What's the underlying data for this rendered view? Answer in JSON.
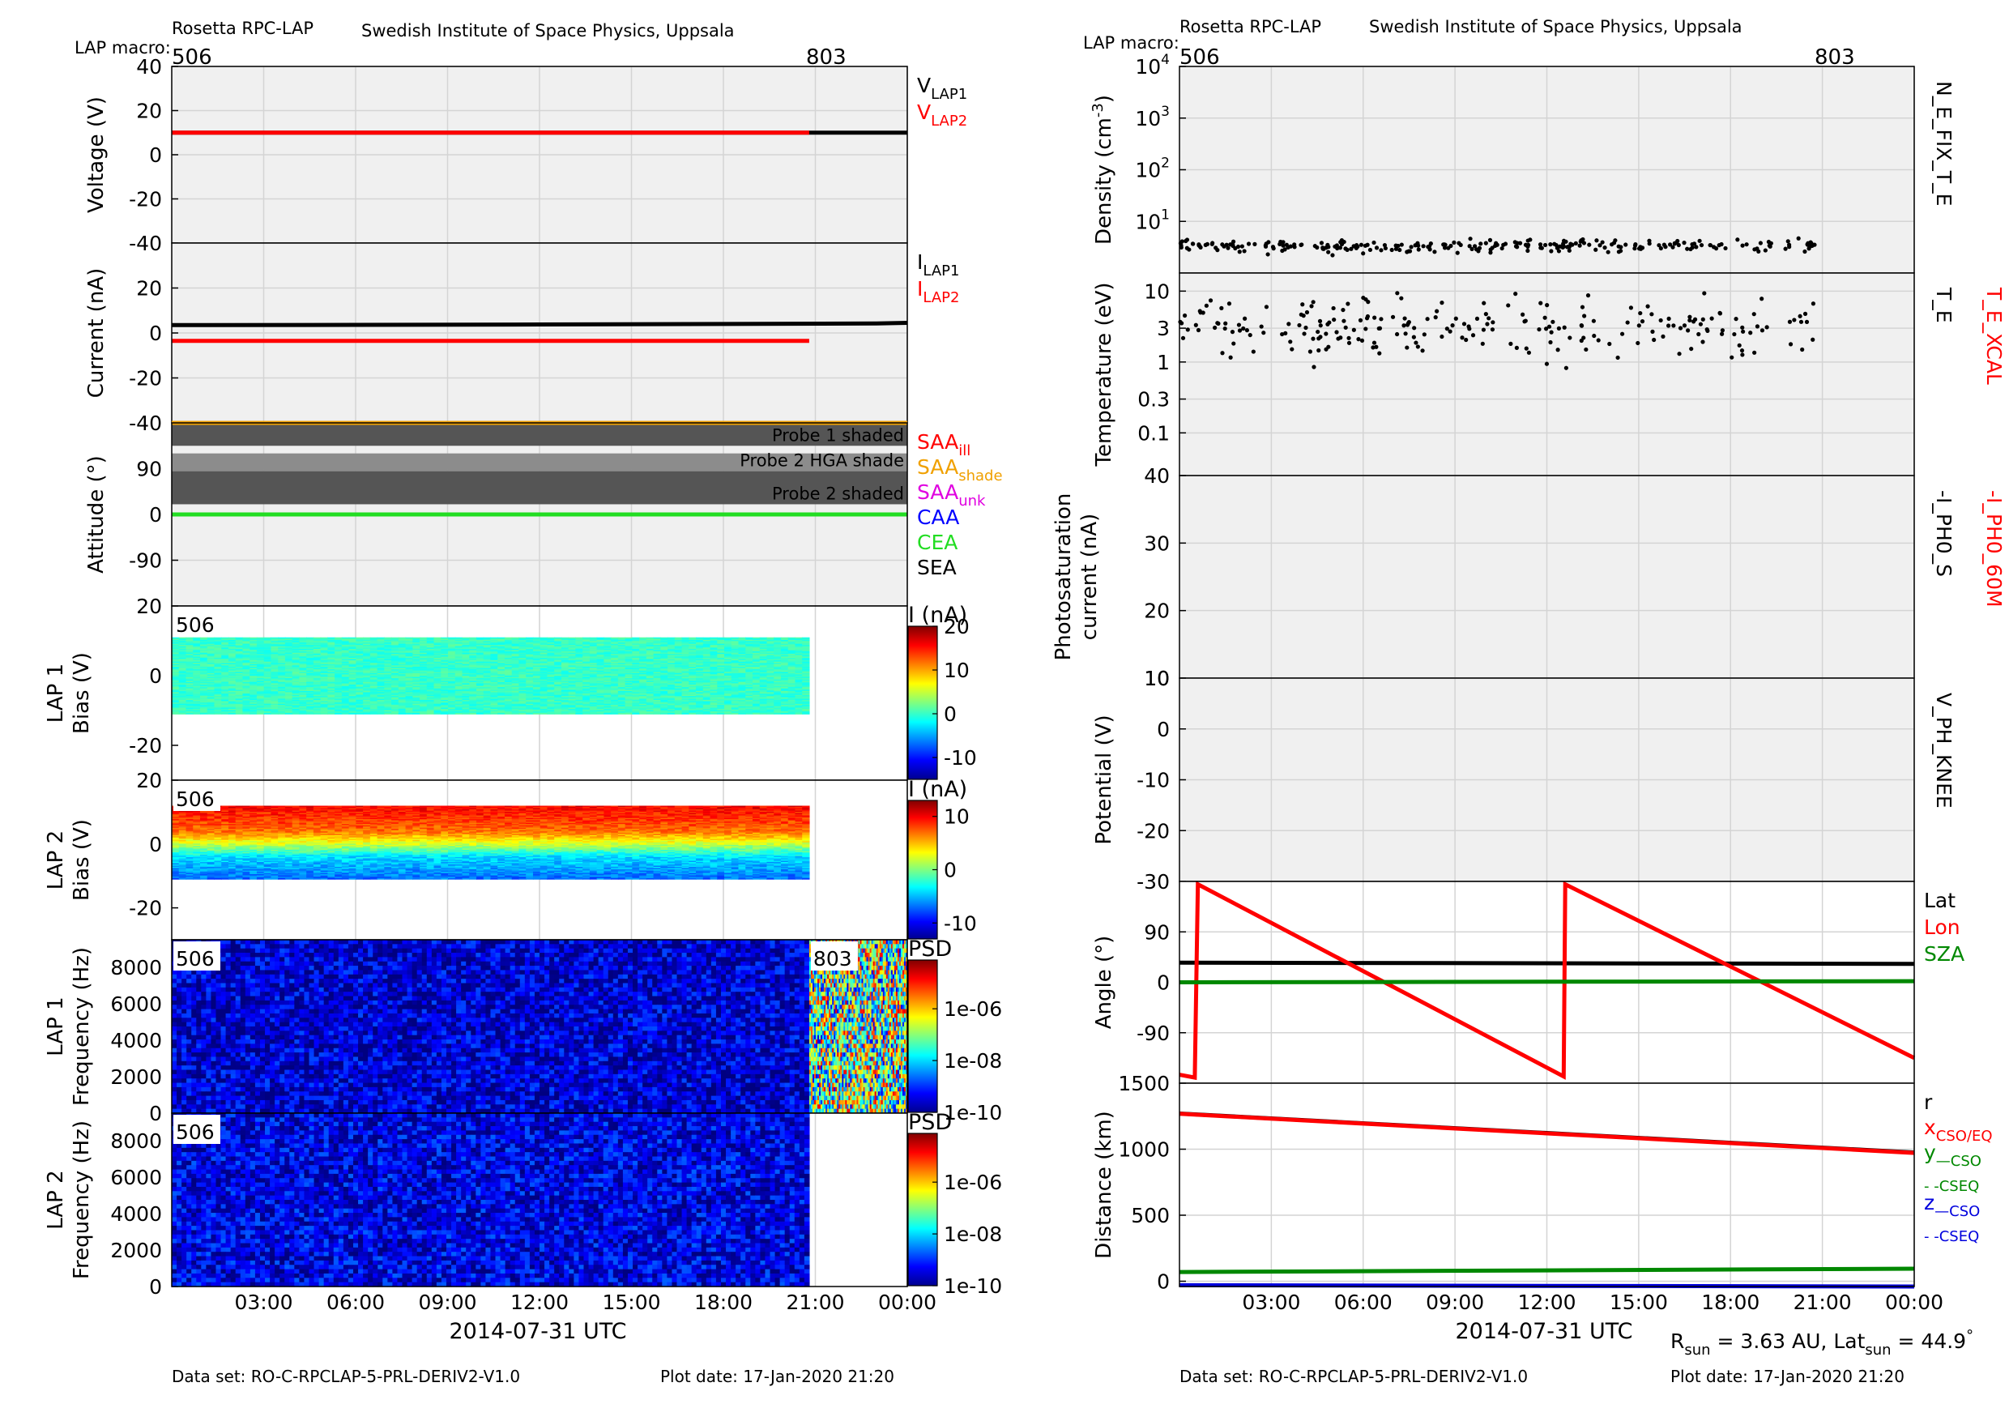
{
  "left": {
    "header": {
      "instrument": "Rosetta RPC-LAP",
      "institute": "Swedish Institute of Space Physics, Uppsala",
      "macro_label": "LAP macro:",
      "macros": [
        "506",
        "803"
      ]
    },
    "xaxis": {
      "ticks": [
        "03:00",
        "06:00",
        "09:00",
        "12:00",
        "15:00",
        "18:00",
        "21:00",
        "00:00"
      ],
      "label": "2014-07-31 UTC"
    },
    "footer": {
      "dataset": "Data set: RO-C-RPCLAP-5-PRL-DERIV2-V1.0",
      "plot_date": "Plot date: 17-Jan-2020 21:20"
    }
  },
  "right": {
    "header": {
      "instrument": "Rosetta RPC-LAP",
      "institute": "Swedish Institute of Space Physics, Uppsala",
      "macro_label": "LAP macro:",
      "macros": [
        "506",
        "803"
      ]
    },
    "xaxis": {
      "ticks": [
        "03:00",
        "06:00",
        "09:00",
        "12:00",
        "15:00",
        "18:00",
        "21:00",
        "00:00"
      ],
      "label": "2014-07-31 UTC"
    },
    "footer": {
      "dataset": "Data set: RO-C-RPCLAP-5-PRL-DERIV2-V1.0",
      "plot_date": "Plot date: 17-Jan-2020 21:20"
    },
    "rsun": {
      "r_prefix": "R",
      "r_sub": "sun",
      "r_value": " = 3.63 AU, Lat",
      "lat_sub": "sun",
      "lat_value": " = 44.9",
      "deg": "°"
    }
  },
  "chart_data": [
    {
      "type": "line",
      "ylabel": "Voltage (V)",
      "ylim": [
        -40,
        40
      ],
      "yticks": [
        "40",
        "20",
        "0",
        "-20",
        "-40"
      ],
      "grid": true,
      "x_unit": "hours since 2014-07-31 00:00 UTC",
      "series": [
        {
          "name": "V_LAP1",
          "color": "#000000",
          "x": [
            0,
            24
          ],
          "y": [
            10,
            10
          ]
        },
        {
          "name": "V_LAP2",
          "color": "#ff0000",
          "x": [
            0,
            20.8
          ],
          "y": [
            10,
            10
          ]
        }
      ],
      "legend": [
        {
          "main": "V",
          "sub": "LAP1",
          "color": "#000000"
        },
        {
          "main": "V",
          "sub": "LAP2",
          "color": "#ff0000"
        }
      ]
    },
    {
      "type": "line",
      "ylabel": "Current (nA)",
      "ylim": [
        -40,
        40
      ],
      "yticks": [
        "20",
        "0",
        "-20",
        "-40"
      ],
      "grid": true,
      "series": [
        {
          "name": "I_LAP1",
          "color": "#000000",
          "x": [
            0,
            6,
            12,
            18,
            23,
            24
          ],
          "y": [
            3.5,
            3.6,
            3.8,
            4.0,
            4.2,
            4.5
          ]
        },
        {
          "name": "I_LAP2",
          "color": "#ff0000",
          "x": [
            0,
            20.8
          ],
          "y": [
            -3.5,
            -3.5
          ]
        }
      ],
      "legend": [
        {
          "main": "I",
          "sub": "LAP1",
          "color": "#000000"
        },
        {
          "main": "I",
          "sub": "LAP2",
          "color": "#ff0000"
        }
      ]
    },
    {
      "type": "area",
      "ylabel": "Attitude (°)",
      "ylim": [
        -180,
        180
      ],
      "yticks": [
        "90",
        "0",
        "-90"
      ],
      "grid": true,
      "bands": [
        {
          "label": "Probe 1 shaded",
          "y0": 135,
          "y1": 185,
          "color": "#555555"
        },
        {
          "label": "Probe 2 HGA shade",
          "y0": 85,
          "y1": 120,
          "color": "#8c8c8c"
        },
        {
          "label": "Probe 2 shaded",
          "y0": 20,
          "y1": 85,
          "color": "#555555"
        }
      ],
      "series": [
        {
          "name": "SAA_ill",
          "color": "#f0a000",
          "x": [
            0,
            24
          ],
          "y": [
            182,
            182
          ]
        },
        {
          "name": "CEA",
          "color": "#22dd22",
          "x": [
            0,
            24
          ],
          "y": [
            0,
            0
          ]
        }
      ],
      "legend": [
        {
          "main": "SAA",
          "sub": "ill",
          "color": "#ff0000"
        },
        {
          "main": "SAA",
          "sub": "shade",
          "color": "#f0a000"
        },
        {
          "main": "SAA",
          "sub": "unk",
          "color": "#e000e0"
        },
        {
          "main": "CAA",
          "sub": "",
          "color": "#0000ff"
        },
        {
          "main": "CEA",
          "sub": "",
          "color": "#22dd22"
        },
        {
          "main": "SEA",
          "sub": "",
          "color": "#000000"
        }
      ]
    },
    {
      "type": "heatmap",
      "ylabel": "LAP 1",
      "ylabel2": "Bias (V)",
      "ylim": [
        -30,
        20
      ],
      "yticks": [
        "20",
        "0",
        "-20"
      ],
      "macro": "506",
      "x_range": [
        0,
        20.8
      ],
      "bias_range": [
        -11,
        11
      ],
      "colorbar": {
        "label": "I (nA)",
        "ticks": [
          "20",
          "10",
          "0",
          "-10"
        ],
        "range": [
          -15,
          20
        ]
      },
      "dominant_value": 0
    },
    {
      "type": "heatmap",
      "ylabel": "LAP 2",
      "ylabel2": "Bias (V)",
      "ylim": [
        -30,
        20
      ],
      "yticks": [
        "20",
        "0",
        "-20"
      ],
      "macro": "506",
      "x_range": [
        0,
        20.8
      ],
      "bias_range": [
        -11,
        12
      ],
      "colorbar": {
        "label": "I (nA)",
        "ticks": [
          "10",
          "0",
          "-10"
        ],
        "range": [
          -13,
          13
        ]
      },
      "value_by_bias": {
        "bias": [
          12,
          4,
          0,
          -4,
          -11
        ],
        "current": [
          10,
          7,
          2,
          -4,
          -7
        ]
      }
    },
    {
      "type": "heatmap",
      "ylabel": "LAP 1",
      "ylabel2": "Frequency (Hz)",
      "ylim": [
        0,
        9500
      ],
      "yticks": [
        "8000",
        "6000",
        "4000",
        "2000",
        "0"
      ],
      "macros": [
        "506",
        "803"
      ],
      "segments": [
        {
          "macro": "506",
          "x_range": [
            0,
            20.8
          ],
          "psd_log10_typical": -9.6
        },
        {
          "macro": "803",
          "x_range": [
            20.8,
            24
          ],
          "psd_log10_typical": -7.5
        }
      ],
      "colorbar": {
        "label": "PSD",
        "ticks": [
          "1e-06",
          "1e-08",
          "1e-10"
        ],
        "range_log10": [
          -10,
          -5
        ]
      }
    },
    {
      "type": "heatmap",
      "ylabel": "LAP 2",
      "ylabel2": "Frequency (Hz)",
      "ylim": [
        0,
        9500
      ],
      "yticks": [
        "8000",
        "6000",
        "4000",
        "2000",
        "0"
      ],
      "macro": "506",
      "segments": [
        {
          "macro": "506",
          "x_range": [
            0,
            20.8
          ],
          "psd_log10_typical": -9.5
        }
      ],
      "colorbar": {
        "label": "PSD",
        "ticks": [
          "1e-06",
          "1e-08",
          "1e-10"
        ],
        "range_log10": [
          -10,
          -5
        ]
      }
    },
    {
      "type": "scatter",
      "ylabel": "Density (cm",
      "ylabel_sup": "-3",
      "ylabel_tail": ")",
      "yscale": "log",
      "ylim": [
        1,
        10000
      ],
      "yticks": [
        {
          "base": "10",
          "exp": "4"
        },
        {
          "base": "10",
          "exp": "3"
        },
        {
          "base": "10",
          "exp": "2"
        },
        {
          "base": "10",
          "exp": "1"
        }
      ],
      "grid": true,
      "x_range": [
        0,
        20.8
      ],
      "y_typical": 3.3,
      "y_spread_log10": 0.1,
      "n_points": 260,
      "side_labels": [
        {
          "text": "N_E_FIX_T_E",
          "color": "#000000"
        }
      ]
    },
    {
      "type": "scatter",
      "ylabel": "Temperature (eV)",
      "yscale": "log",
      "ylim": [
        0.025,
        18
      ],
      "yticks": [
        "10",
        "3",
        "1",
        "0.3",
        "0.1"
      ],
      "grid": true,
      "x_range": [
        0,
        20.8
      ],
      "y_typical": 3,
      "y_spread_log10": 0.35,
      "n_points": 230,
      "side_labels": [
        {
          "text": "T_E",
          "color": "#000000"
        },
        {
          "text": "T_E_XCAL",
          "color": "#ff0000"
        }
      ]
    },
    {
      "type": "scatter",
      "ylabel": "Photosaturation",
      "ylabel2": "current (nA)",
      "ylim": [
        10,
        40
      ],
      "yticks": [
        "40",
        "30",
        "20",
        "10"
      ],
      "grid": true,
      "series": [],
      "side_labels": [
        {
          "text": "-I_PH0_S",
          "color": "#000000"
        },
        {
          "text": "-I_PH0_60M",
          "color": "#ff0000"
        }
      ]
    },
    {
      "type": "scatter",
      "ylabel": "Potential (V)",
      "ylim": [
        -30,
        10
      ],
      "yticks": [
        "10",
        "0",
        "-10",
        "-20",
        "-30"
      ],
      "grid": true,
      "series": [],
      "side_labels": [
        {
          "text": "V_PH_KNEE",
          "color": "#000000"
        }
      ]
    },
    {
      "type": "line",
      "ylabel": "Angle (°)",
      "ylim": [
        -180,
        180
      ],
      "yticks": [
        "90",
        "0",
        "-90"
      ],
      "grid": true,
      "series": [
        {
          "name": "Lat",
          "color": "#000000",
          "x": [
            0,
            24
          ],
          "y": [
            35,
            33
          ]
        },
        {
          "name": "Lon",
          "color": "#ff0000",
          "x": [
            0,
            0.5,
            0.6,
            12.55,
            12.6,
            24
          ],
          "y": [
            -165,
            -170,
            175,
            -168,
            175,
            -135
          ]
        },
        {
          "name": "SZA",
          "color": "#008800",
          "x": [
            0,
            24
          ],
          "y": [
            0,
            2
          ]
        }
      ],
      "legend": [
        {
          "main": "Lat",
          "sub": "",
          "color": "#000000"
        },
        {
          "main": "Lon",
          "sub": "",
          "color": "#ff0000"
        },
        {
          "main": "SZA",
          "sub": "",
          "color": "#008800"
        }
      ]
    },
    {
      "type": "line",
      "ylabel": "Distance (km)",
      "ylim": [
        -40,
        1500
      ],
      "yticks": [
        "1500",
        "1000",
        "500",
        "0"
      ],
      "grid": true,
      "series": [
        {
          "name": "r",
          "color": "#000000",
          "x": [
            0,
            24
          ],
          "y": [
            1270,
            975
          ]
        },
        {
          "name": "x",
          "color": "#ff0000",
          "x": [
            0,
            24
          ],
          "y": [
            1268,
            972
          ]
        },
        {
          "name": "y",
          "color": "#008800",
          "x": [
            0,
            24
          ],
          "y": [
            70,
            95
          ]
        },
        {
          "name": "z",
          "color": "#0000dd",
          "x": [
            0,
            24
          ],
          "y": [
            -30,
            -40
          ]
        }
      ],
      "legend": [
        {
          "main": "r",
          "sub": "",
          "color": "#000000"
        },
        {
          "main": "x",
          "sub": "CSO/EQ",
          "color": "#ff0000"
        },
        {
          "main": "y",
          "sub": "—CSO",
          "color": "#008800"
        },
        {
          "main": "",
          "sub": "- -CSEQ",
          "color": "#008800"
        },
        {
          "main": "z",
          "sub": "—CSO",
          "color": "#0000dd"
        },
        {
          "main": "",
          "sub": "- -CSEQ",
          "color": "#0000dd"
        }
      ]
    }
  ]
}
